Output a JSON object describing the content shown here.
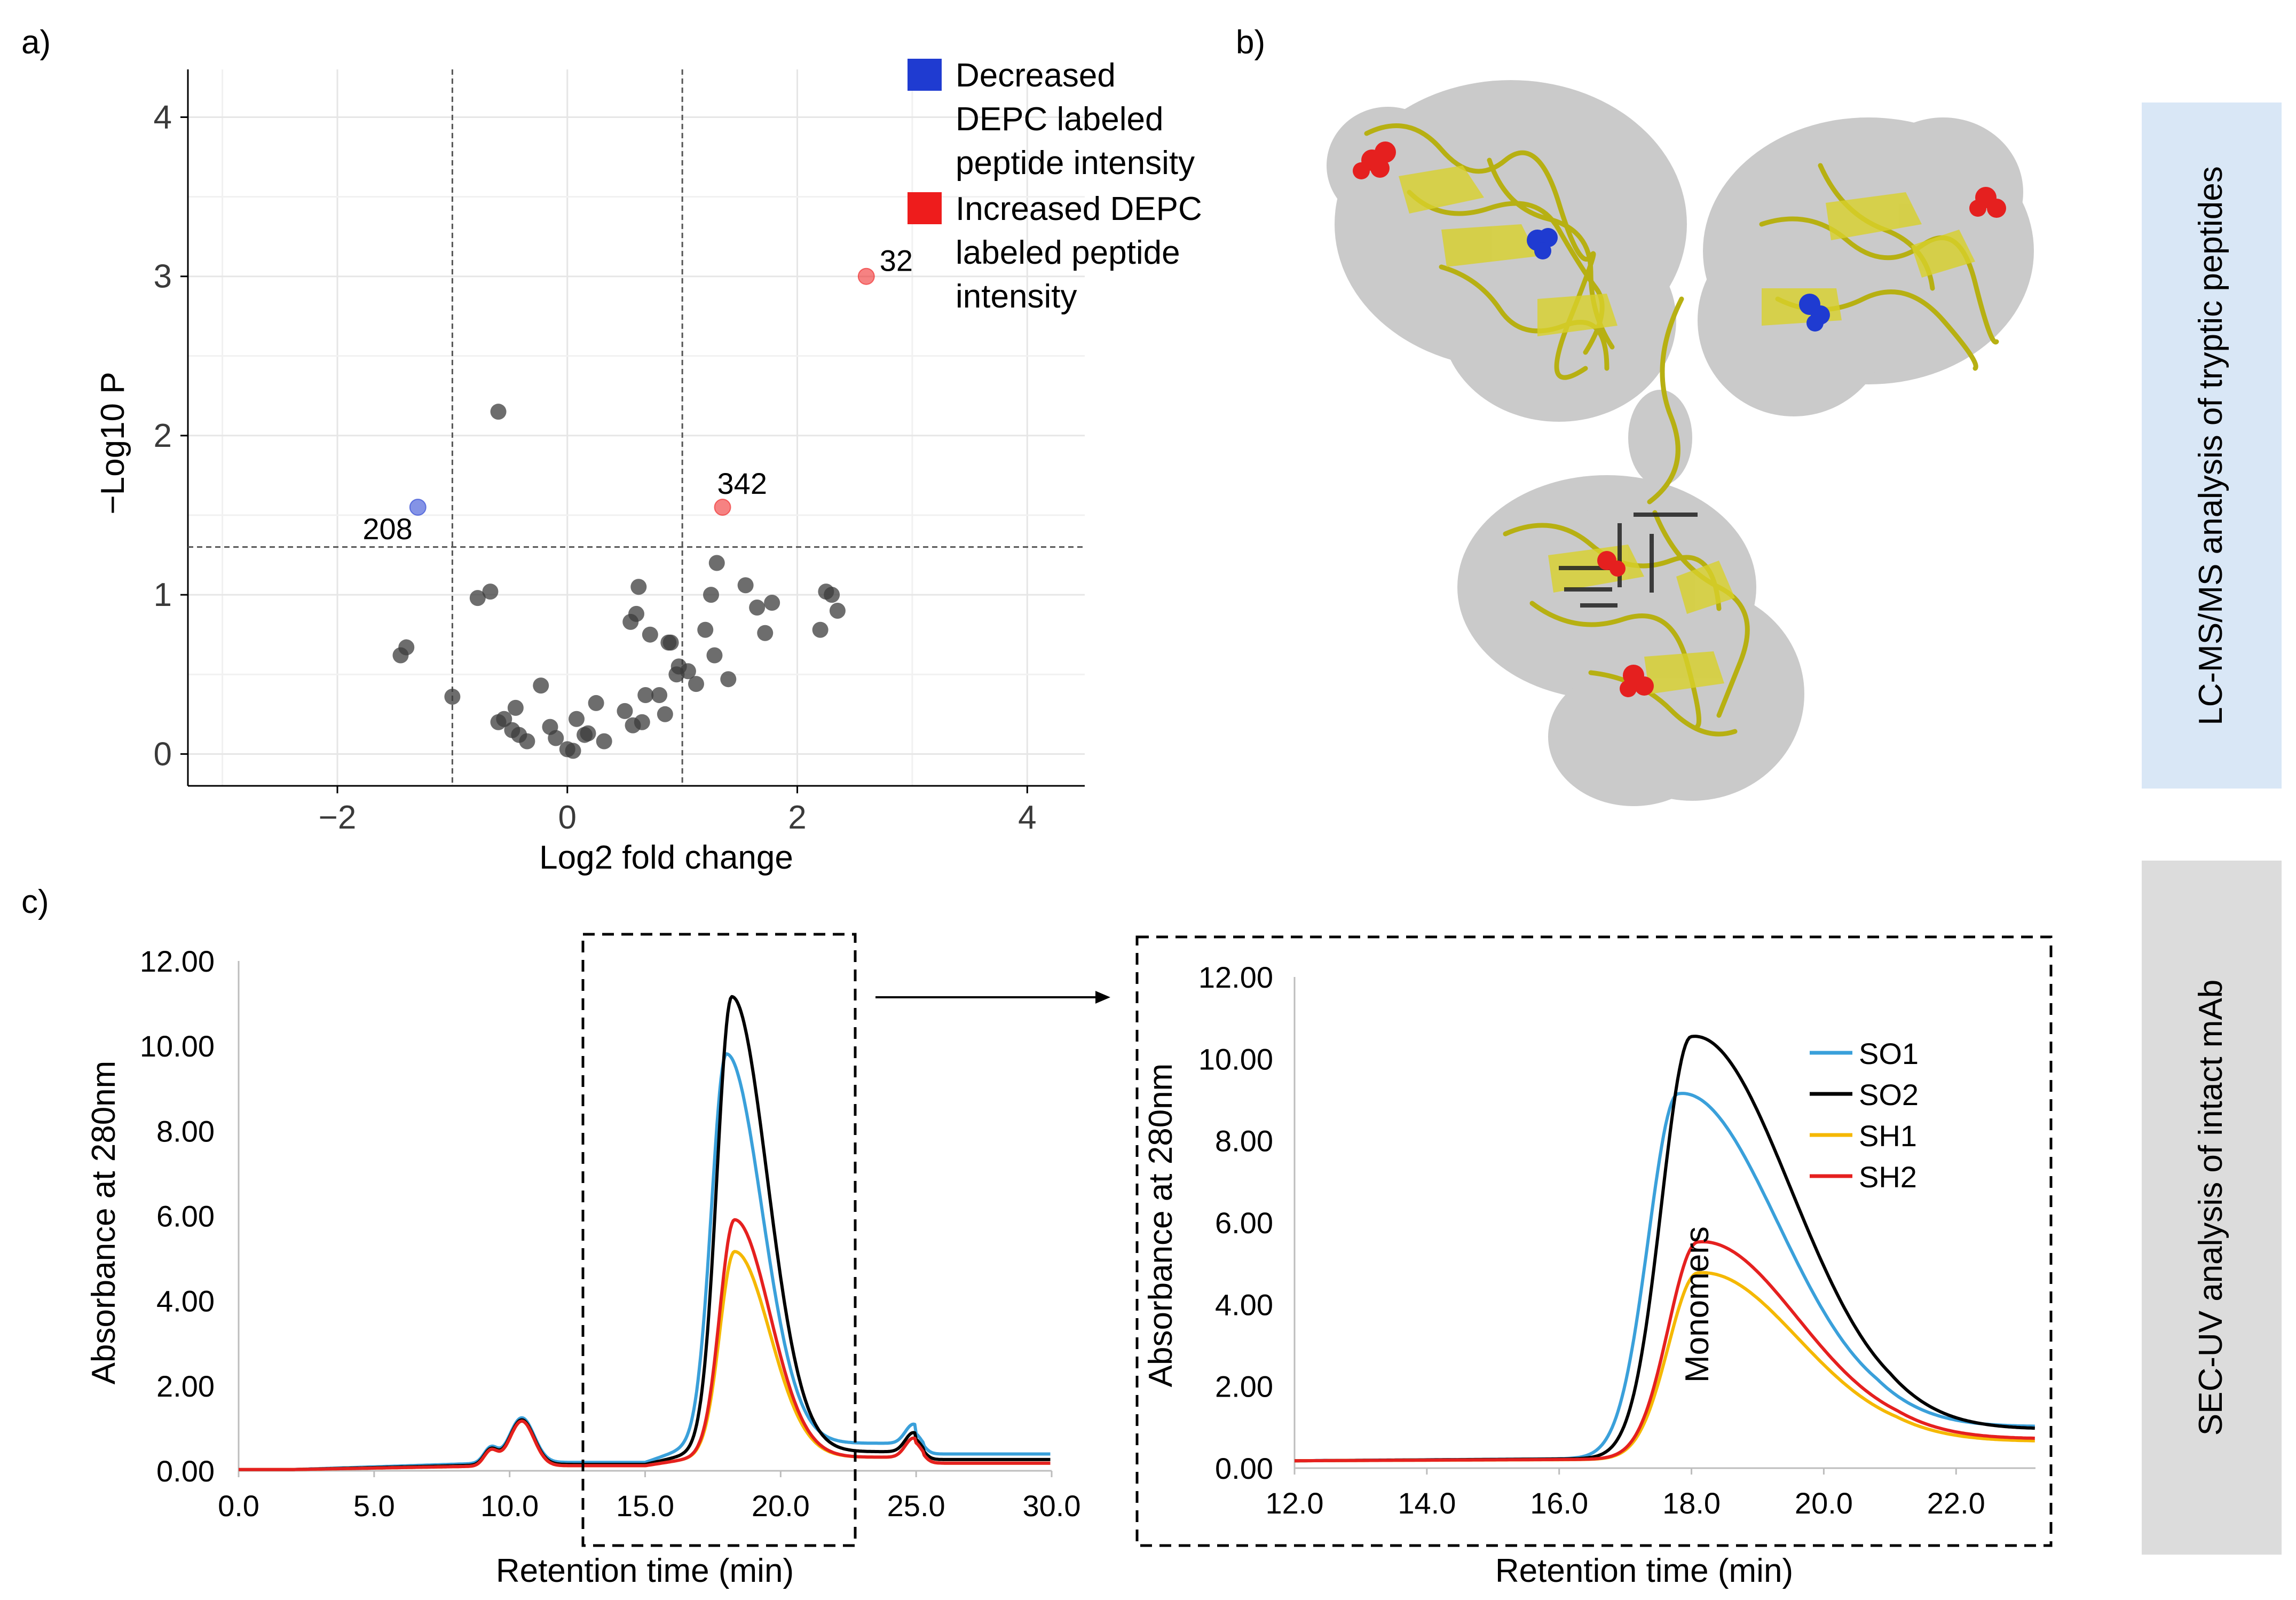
{
  "panels": {
    "a": "a)",
    "b": "b)",
    "c": "c)"
  },
  "side_labels": {
    "top": "LC-MS/MS analysis of tryptic peptides",
    "bottom": "SEC-UV analysis of intact mAb"
  },
  "colors": {
    "decreased": "#1f3bd1",
    "increased": "#ee1c1c",
    "so1": "#3aa0da",
    "so2": "#000000",
    "sh1": "#f5b800",
    "sh2": "#e5201f",
    "side_top_bg": "#d9e7f6",
    "side_bottom_bg": "#dcdcdc",
    "protein": "#c7c21a",
    "surface": "#b8b8b8"
  },
  "icons": {
    "structure": "antibody-structure-icon"
  },
  "chart_data": [
    {
      "type": "scatter",
      "title": "",
      "xlabel": "Log2 fold change",
      "ylabel": "−Log10 P",
      "xlim": [
        -3.3,
        4.5
      ],
      "ylim": [
        -0.2,
        4.3
      ],
      "xticks": [
        -2,
        0,
        2,
        4
      ],
      "xtick_labels": [
        "−2",
        "0",
        "2",
        "4"
      ],
      "yticks": [
        0,
        1,
        2,
        3,
        4
      ],
      "ytick_labels": [
        "0",
        "1",
        "2",
        "3",
        "4"
      ],
      "thresholds": {
        "x": [
          -1,
          1
        ],
        "y": 1.3
      },
      "legend": [
        {
          "name": "Decreased DEPC labeled peptide intensity",
          "lines": [
            "Decreased",
            "DEPC labeled",
            "peptide intensity"
          ],
          "color_key": "decreased"
        },
        {
          "name": "Increased DEPC labeled peptide intensity",
          "lines": [
            "Increased DEPC",
            "labeled peptide",
            "intensity"
          ],
          "color_key": "increased"
        }
      ],
      "highlighted": [
        {
          "label": "32",
          "x": 2.6,
          "y": 3.0,
          "group": "increased"
        },
        {
          "label": "342",
          "x": 1.35,
          "y": 1.55,
          "group": "increased"
        },
        {
          "label": "208",
          "x": -1.3,
          "y": 1.55,
          "group": "decreased"
        }
      ],
      "points": [
        [
          -0.6,
          2.15
        ],
        [
          -1.45,
          0.62
        ],
        [
          -1.4,
          0.67
        ],
        [
          -1.0,
          0.36
        ],
        [
          -0.78,
          0.98
        ],
        [
          -0.67,
          1.02
        ],
        [
          -0.6,
          0.2
        ],
        [
          -0.55,
          0.22
        ],
        [
          -0.48,
          0.15
        ],
        [
          -0.45,
          0.29
        ],
        [
          -0.42,
          0.12
        ],
        [
          -0.35,
          0.08
        ],
        [
          -0.23,
          0.43
        ],
        [
          -0.15,
          0.17
        ],
        [
          -0.1,
          0.1
        ],
        [
          0.0,
          0.03
        ],
        [
          0.05,
          0.02
        ],
        [
          0.08,
          0.22
        ],
        [
          0.15,
          0.12
        ],
        [
          0.18,
          0.13
        ],
        [
          0.25,
          0.32
        ],
        [
          0.32,
          0.08
        ],
        [
          0.5,
          0.27
        ],
        [
          0.55,
          0.83
        ],
        [
          0.57,
          0.18
        ],
        [
          0.6,
          0.88
        ],
        [
          0.62,
          1.05
        ],
        [
          0.65,
          0.2
        ],
        [
          0.68,
          0.37
        ],
        [
          0.72,
          0.75
        ],
        [
          0.8,
          0.37
        ],
        [
          0.85,
          0.25
        ],
        [
          0.88,
          0.7
        ],
        [
          0.9,
          0.7
        ],
        [
          0.95,
          0.5
        ],
        [
          0.97,
          0.55
        ],
        [
          1.05,
          0.52
        ],
        [
          1.12,
          0.44
        ],
        [
          1.2,
          0.78
        ],
        [
          1.25,
          1.0
        ],
        [
          1.28,
          0.62
        ],
        [
          1.3,
          1.2
        ],
        [
          1.4,
          0.47
        ],
        [
          1.55,
          1.06
        ],
        [
          1.65,
          0.92
        ],
        [
          1.72,
          0.76
        ],
        [
          1.78,
          0.95
        ],
        [
          2.2,
          0.78
        ],
        [
          2.25,
          1.02
        ],
        [
          2.3,
          1.0
        ],
        [
          2.35,
          0.9
        ]
      ]
    },
    {
      "type": "line",
      "title": "",
      "xlabel": "Retention time (min)",
      "ylabel": "Absorbance at 280nm",
      "xlim": [
        0,
        30
      ],
      "ylim": [
        0,
        12
      ],
      "xticks": [
        0,
        5,
        10,
        15,
        20,
        25,
        30
      ],
      "xtick_labels": [
        "0.0",
        "5.0",
        "10.0",
        "15.0",
        "20.0",
        "25.0",
        "30.0"
      ],
      "yticks": [
        0,
        2,
        4,
        6,
        8,
        10,
        12
      ],
      "ytick_labels": [
        "0.00",
        "2.00",
        "4.00",
        "6.00",
        "8.00",
        "10.00",
        "12.00"
      ],
      "zoom_region": [
        12.9,
        23.0
      ],
      "series": [
        {
          "name": "SO1",
          "color_key": "so1",
          "baseline": 0.28,
          "peak": 9.3,
          "peak_x": 18.0,
          "tail": 0.45
        },
        {
          "name": "SO2",
          "color_key": "so2",
          "baseline": 0.2,
          "peak": 10.8,
          "peak_x": 18.2,
          "tail": 0.3
        },
        {
          "name": "SH1",
          "color_key": "sh1",
          "baseline": 0.15,
          "peak": 4.9,
          "peak_x": 18.3,
          "tail": 0.2
        },
        {
          "name": "SH2",
          "color_key": "sh2",
          "baseline": 0.15,
          "peak": 5.65,
          "peak_x": 18.3,
          "tail": 0.2
        }
      ]
    },
    {
      "type": "line",
      "title": "",
      "xlabel": "Retention time (min)",
      "ylabel": "Absorbance at 280nm",
      "xlim": [
        12,
        23.2
      ],
      "ylim": [
        0,
        12
      ],
      "xticks": [
        12,
        14,
        16,
        18,
        20,
        22
      ],
      "xtick_labels": [
        "12.0",
        "14.0",
        "16.0",
        "18.0",
        "20.0",
        "22.0"
      ],
      "yticks": [
        0,
        2,
        4,
        6,
        8,
        10,
        12
      ],
      "ytick_labels": [
        "0.00",
        "2.00",
        "4.00",
        "6.00",
        "8.00",
        "10.00",
        "12.00"
      ],
      "annotation": "Monomers",
      "legend_position": "top-right",
      "series": [
        {
          "name": "SO1",
          "color_key": "so1",
          "peak": 9.2,
          "peak_x": 17.8,
          "end": 0.7
        },
        {
          "name": "SO2",
          "color_key": "so2",
          "peak": 10.6,
          "peak_x": 18.0,
          "end": 0.65
        },
        {
          "name": "SH1",
          "color_key": "sh1",
          "peak": 4.85,
          "peak_x": 18.1,
          "end": 0.4
        },
        {
          "name": "SH2",
          "color_key": "sh2",
          "peak": 5.6,
          "peak_x": 18.1,
          "end": 0.45
        }
      ]
    }
  ]
}
